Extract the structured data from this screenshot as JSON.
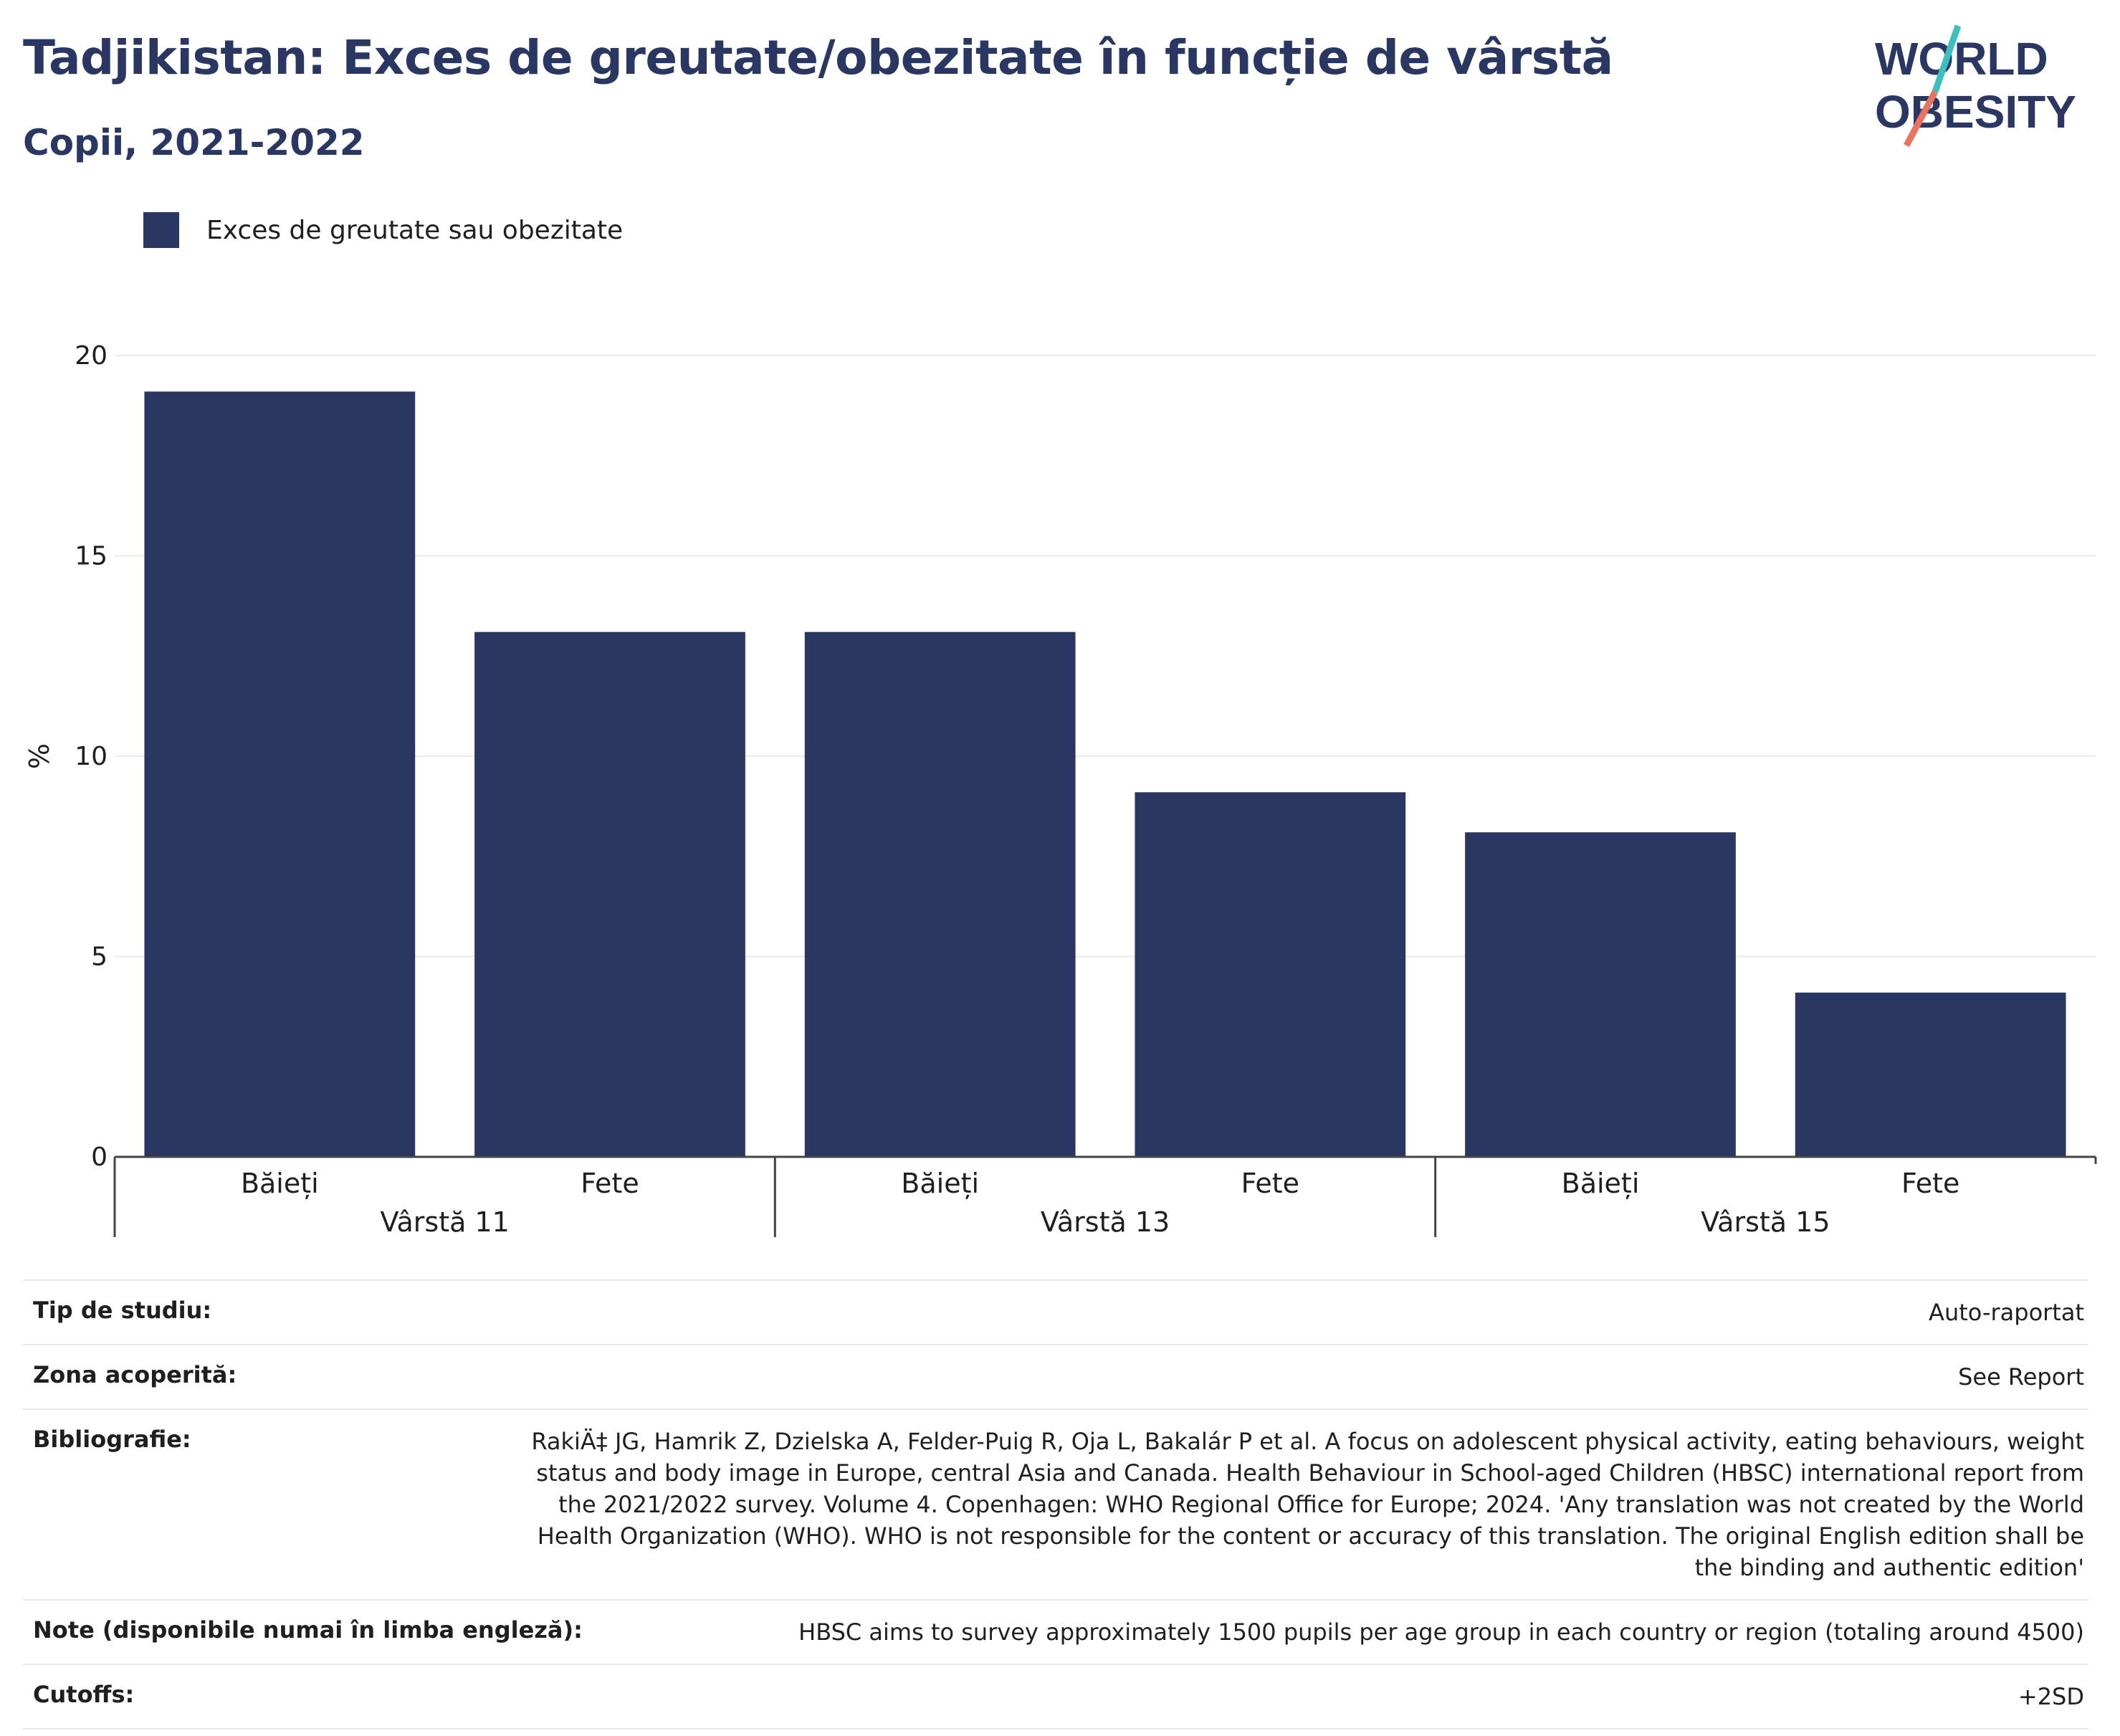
{
  "header": {
    "title": "Tadjikistan: Exces de greutate/obezitate în funcție de vârstă",
    "subtitle": "Copii, 2021-2022",
    "logo_line1": "WORLD",
    "logo_line2": "OBESITY"
  },
  "colors": {
    "bar": "#2a3763",
    "title": "#2a3763",
    "logo_teal": "#3bbfbf",
    "logo_coral": "#e8735f"
  },
  "chart_data": {
    "type": "bar",
    "legend_position": "top-left",
    "series": [
      {
        "name": "Exces de greutate sau obezitate",
        "values": [
          19.1,
          13.1,
          13.1,
          9.1,
          8.1,
          4.1
        ]
      }
    ],
    "categories": [
      "Băieți",
      "Fete",
      "Băieți",
      "Fete",
      "Băieți",
      "Fete"
    ],
    "groups": [
      {
        "label": "Vârstă 11",
        "size": 2
      },
      {
        "label": "Vârstă 13",
        "size": 2
      },
      {
        "label": "Vârstă 15",
        "size": 2
      }
    ],
    "ylabel": "%",
    "yticks": [
      "0",
      "5",
      "10",
      "15",
      "20"
    ],
    "ylim": [
      0,
      20
    ],
    "grid": true
  },
  "info": [
    {
      "label": "Tip de studiu:",
      "value": "Auto-raportat"
    },
    {
      "label": "Zona acoperită:",
      "value": "See Report"
    },
    {
      "label": "Bibliografie:",
      "value": "RakiÄ‡ JG, Hamrik Z, Dzielska A, Felder-Puig R, Oja L, Bakalár P et al. A focus on adolescent physical activity, eating behaviours, weight status and body image in Europe, central Asia and Canada. Health Behaviour in School-aged Children (HBSC) international report from the 2021/2022 survey. Volume 4. Copenhagen: WHO Regional Office for Europe; 2024. 'Any translation was not created by the World Health Organization (WHO). WHO is not responsible for the content or accuracy of this translation. The original English edition shall be the binding and authentic edition'"
    },
    {
      "label": "Note (disponibile numai în limba engleză):",
      "value": "HBSC aims to survey approximately 1500 pupils per age group in each country or region (totaling around 4500)"
    },
    {
      "label": "Cutoffs:",
      "value": "+2SD"
    }
  ]
}
